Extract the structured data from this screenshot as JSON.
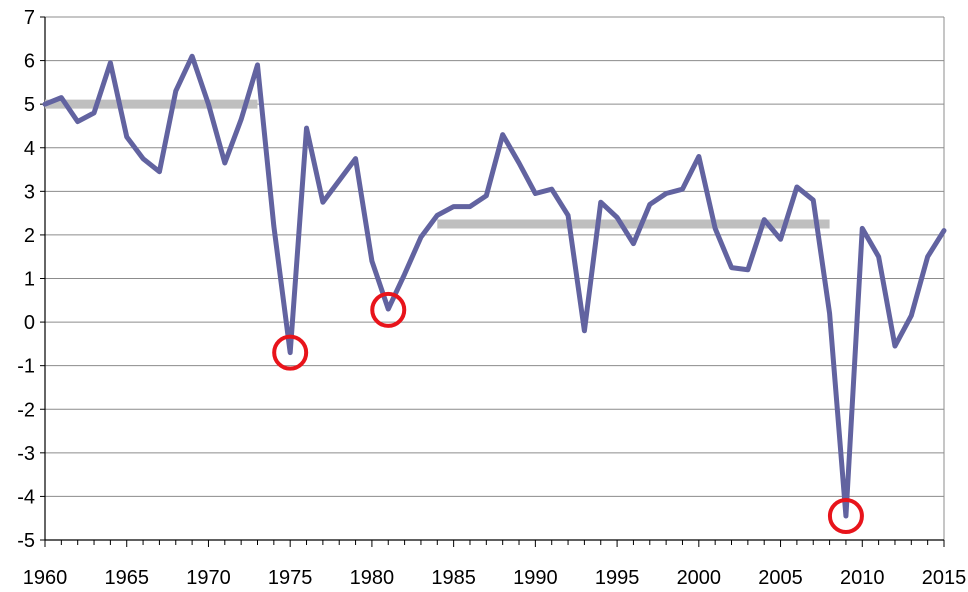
{
  "chart_data": {
    "type": "line",
    "title": "",
    "xlabel": "",
    "ylabel": "",
    "xlim": [
      1960,
      2015
    ],
    "ylim": [
      -5,
      7
    ],
    "grid": {
      "horizontal": true,
      "vertical": false
    },
    "x_ticks": [
      1960,
      1965,
      1970,
      1975,
      1980,
      1985,
      1990,
      1995,
      2000,
      2005,
      2010,
      2015
    ],
    "y_ticks": [
      -5,
      -4,
      -3,
      -2,
      -1,
      0,
      1,
      2,
      3,
      4,
      5,
      6,
      7
    ],
    "series": [
      {
        "color": "#6263a0",
        "x": [
          1960,
          1961,
          1962,
          1963,
          1964,
          1965,
          1966,
          1967,
          1968,
          1969,
          1970,
          1971,
          1972,
          1973,
          1974,
          1975,
          1976,
          1977,
          1978,
          1979,
          1980,
          1981,
          1982,
          1983,
          1984,
          1985,
          1986,
          1987,
          1988,
          1989,
          1990,
          1991,
          1992,
          1993,
          1994,
          1995,
          1996,
          1997,
          1998,
          1999,
          2000,
          2001,
          2002,
          2003,
          2004,
          2005,
          2006,
          2007,
          2008,
          2009,
          2010,
          2011,
          2012,
          2013,
          2014,
          2015
        ],
        "values": [
          5.0,
          5.15,
          4.6,
          4.8,
          5.95,
          4.25,
          3.75,
          3.45,
          5.3,
          6.1,
          5.0,
          3.65,
          4.65,
          5.9,
          2.2,
          -0.7,
          4.45,
          2.75,
          3.25,
          3.75,
          1.4,
          0.3,
          1.1,
          1.95,
          2.45,
          2.65,
          2.65,
          2.9,
          4.3,
          3.65,
          2.95,
          3.05,
          2.45,
          -0.2,
          2.75,
          2.4,
          1.8,
          2.7,
          2.95,
          3.05,
          3.8,
          2.15,
          1.25,
          1.2,
          2.35,
          1.9,
          3.1,
          2.8,
          0.2,
          -4.45,
          2.15,
          1.5,
          -0.55,
          0.15,
          1.5,
          2.1
        ]
      }
    ],
    "reference_lines": [
      {
        "color": "#bfbfbf",
        "x": [
          1960,
          1973
        ],
        "y": 5.0
      },
      {
        "color": "#bfbfbf",
        "x": [
          1984,
          2008
        ],
        "y": 2.25
      }
    ],
    "highlight_markers": [
      {
        "color": "#e8141b",
        "shape": "circle",
        "x": 1975,
        "y": -0.7
      },
      {
        "color": "#e8141b",
        "shape": "circle",
        "x": 1981,
        "y": 0.28
      },
      {
        "color": "#e8141b",
        "shape": "circle",
        "x": 2009,
        "y": -4.45
      }
    ],
    "colors": {
      "axis": "#000000",
      "gridline": "#8c8c8c"
    }
  }
}
